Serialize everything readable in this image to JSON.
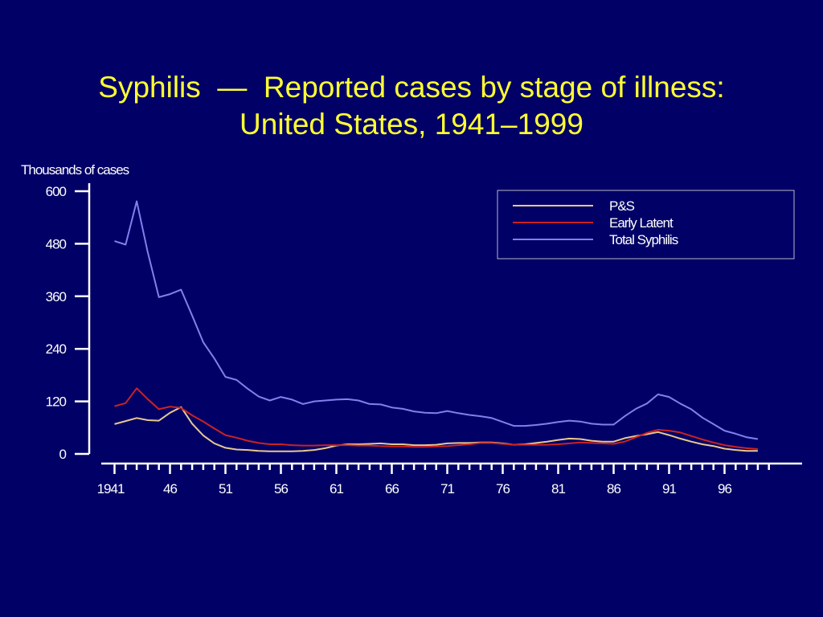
{
  "slide": {
    "title_line1": "Syphilis  —  Reported cases by stage of illness:",
    "title_line2": "United States, 1941–1999"
  },
  "chart_data": {
    "type": "line",
    "title": "Syphilis  —  Reported cases by stage of illness: United States, 1941–1999",
    "ylabel": "Thousands of cases",
    "xlabel": "",
    "ylim": [
      0,
      600
    ],
    "xlim": [
      1940,
      2000
    ],
    "y_ticks": [
      0,
      120,
      240,
      360,
      480,
      600
    ],
    "x_tick_labels": [
      {
        "year": 1941,
        "label": "1941"
      },
      {
        "year": 1946,
        "label": "46"
      },
      {
        "year": 1951,
        "label": "51"
      },
      {
        "year": 1956,
        "label": "56"
      },
      {
        "year": 1961,
        "label": "61"
      },
      {
        "year": 1966,
        "label": "66"
      },
      {
        "year": 1971,
        "label": "71"
      },
      {
        "year": 1976,
        "label": "76"
      },
      {
        "year": 1981,
        "label": "81"
      },
      {
        "year": 1986,
        "label": "86"
      },
      {
        "year": 1991,
        "label": "91"
      },
      {
        "year": 1996,
        "label": "96"
      }
    ],
    "legend_position": "top-right",
    "grid": false,
    "x": [
      1941,
      1942,
      1943,
      1944,
      1945,
      1946,
      1947,
      1948,
      1949,
      1950,
      1951,
      1952,
      1953,
      1954,
      1955,
      1956,
      1957,
      1958,
      1959,
      1960,
      1961,
      1962,
      1963,
      1964,
      1965,
      1966,
      1967,
      1968,
      1969,
      1970,
      1971,
      1972,
      1973,
      1974,
      1975,
      1976,
      1977,
      1978,
      1979,
      1980,
      1981,
      1982,
      1983,
      1984,
      1985,
      1986,
      1987,
      1988,
      1989,
      1990,
      1991,
      1992,
      1993,
      1994,
      1995,
      1996,
      1997,
      1998,
      1999
    ],
    "series": [
      {
        "name": "P&S",
        "color": "#e8c890",
        "values": [
          68,
          75,
          82,
          77,
          76,
          94,
          107,
          69,
          42,
          24,
          14,
          10,
          9,
          7,
          6,
          6,
          6,
          7,
          9,
          13,
          19,
          22,
          22,
          23,
          24,
          22,
          22,
          20,
          20,
          21,
          24,
          25,
          25,
          26,
          26,
          24,
          21,
          22,
          25,
          28,
          32,
          35,
          34,
          30,
          28,
          28,
          36,
          41,
          45,
          50,
          43,
          35,
          28,
          22,
          18,
          12,
          9,
          7,
          7
        ]
      },
      {
        "name": "Early Latent",
        "color": "#cc2222",
        "values": [
          109,
          116,
          150,
          125,
          102,
          108,
          105,
          88,
          74,
          58,
          43,
          37,
          30,
          25,
          22,
          22,
          20,
          19,
          19,
          20,
          20,
          20,
          19,
          19,
          18,
          17,
          17,
          16,
          16,
          17,
          18,
          20,
          22,
          25,
          25,
          23,
          21,
          21,
          21,
          21,
          22,
          24,
          26,
          25,
          24,
          23,
          28,
          38,
          48,
          55,
          53,
          49,
          41,
          33,
          26,
          20,
          16,
          13,
          11
        ]
      },
      {
        "name": "Total Syphilis",
        "color": "#8080ee",
        "values": [
          486,
          478,
          577,
          460,
          358,
          365,
          375,
          316,
          255,
          218,
          176,
          169,
          149,
          131,
          122,
          130,
          124,
          114,
          120,
          122,
          124,
          125,
          122,
          114,
          113,
          106,
          103,
          97,
          94,
          93,
          98,
          93,
          89,
          86,
          82,
          73,
          64,
          64,
          66,
          69,
          73,
          76,
          74,
          69,
          67,
          67,
          86,
          103,
          115,
          136,
          130,
          115,
          102,
          83,
          68,
          53,
          46,
          38,
          34
        ]
      }
    ]
  }
}
